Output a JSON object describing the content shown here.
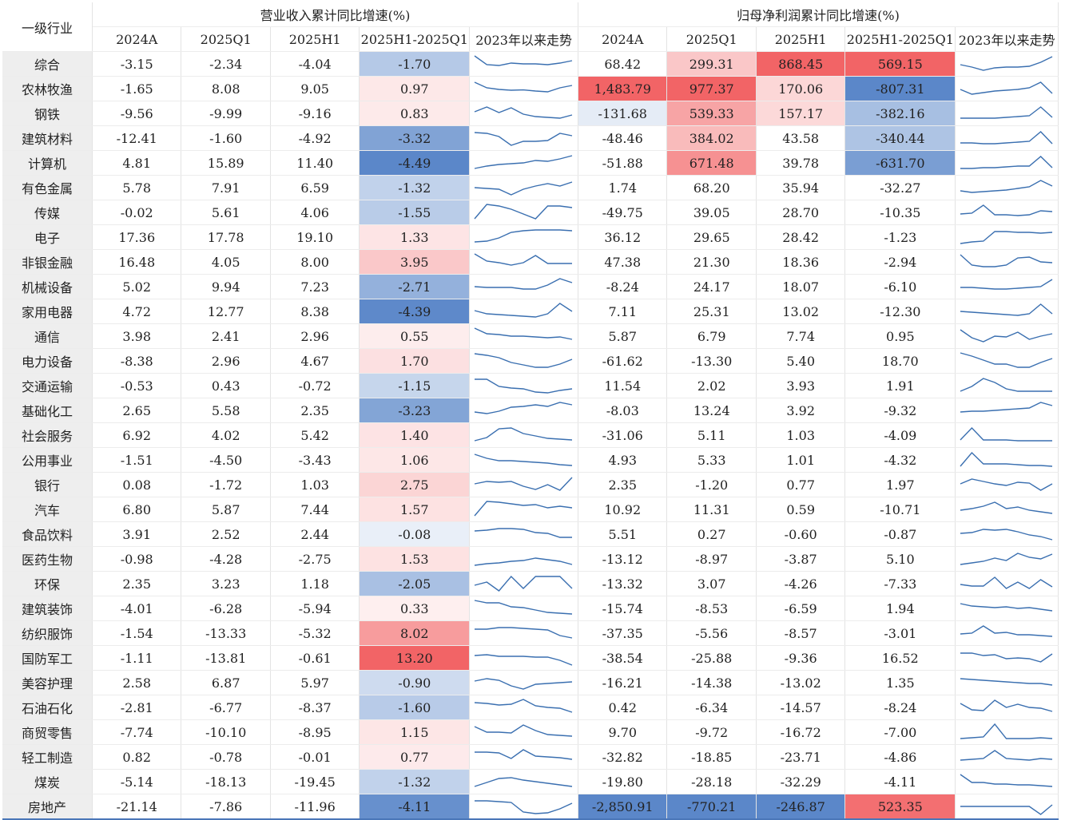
{
  "headers": {
    "industry": "一级行业",
    "revenue_group": "营业收入累计同比增速(%)",
    "profit_group": "归母净利润累计同比增速(%)",
    "cols": [
      "2024A",
      "2025Q1",
      "2025H1",
      "2025H1-2025Q1",
      "2023年以来走势"
    ]
  },
  "colors": {
    "header_text": "#5b7fb3",
    "border": "#4a76b8",
    "spark": "#3a6fb0",
    "negative_max": "#5b87c9",
    "positive_max": "#f26466"
  },
  "chart_data": {
    "type": "table",
    "rows": [
      {
        "name": "综合",
        "rev": [
          "-3.15",
          "-2.34",
          "-4.04",
          "-1.70"
        ],
        "pro": [
          "68.42",
          "299.31",
          "868.45",
          "569.15"
        ]
      },
      {
        "name": "农林牧渔",
        "rev": [
          "-1.65",
          "8.08",
          "9.05",
          "0.97"
        ],
        "pro": [
          "1,483.79",
          "977.37",
          "170.06",
          "-807.31"
        ]
      },
      {
        "name": "钢铁",
        "rev": [
          "-9.56",
          "-9.99",
          "-9.16",
          "0.83"
        ],
        "pro": [
          "-131.68",
          "539.33",
          "157.17",
          "-382.16"
        ]
      },
      {
        "name": "建筑材料",
        "rev": [
          "-12.41",
          "-1.60",
          "-4.92",
          "-3.32"
        ],
        "pro": [
          "-48.46",
          "384.02",
          "43.58",
          "-340.44"
        ]
      },
      {
        "name": "计算机",
        "rev": [
          "4.81",
          "15.89",
          "11.40",
          "-4.49"
        ],
        "pro": [
          "-51.88",
          "671.48",
          "39.78",
          "-631.70"
        ]
      },
      {
        "name": "有色金属",
        "rev": [
          "5.78",
          "7.91",
          "6.59",
          "-1.32"
        ],
        "pro": [
          "1.74",
          "68.20",
          "35.94",
          "-32.27"
        ]
      },
      {
        "name": "传媒",
        "rev": [
          "-0.02",
          "5.61",
          "4.06",
          "-1.55"
        ],
        "pro": [
          "-49.75",
          "39.05",
          "28.70",
          "-10.35"
        ]
      },
      {
        "name": "电子",
        "rev": [
          "17.36",
          "17.78",
          "19.10",
          "1.33"
        ],
        "pro": [
          "36.12",
          "29.65",
          "28.42",
          "-1.23"
        ]
      },
      {
        "name": "非银金融",
        "rev": [
          "16.48",
          "4.05",
          "8.00",
          "3.95"
        ],
        "pro": [
          "47.38",
          "21.30",
          "18.36",
          "-2.94"
        ]
      },
      {
        "name": "机械设备",
        "rev": [
          "5.02",
          "9.94",
          "7.23",
          "-2.71"
        ],
        "pro": [
          "-8.24",
          "24.17",
          "18.07",
          "-6.10"
        ]
      },
      {
        "name": "家用电器",
        "rev": [
          "4.72",
          "12.77",
          "8.38",
          "-4.39"
        ],
        "pro": [
          "7.11",
          "25.31",
          "13.02",
          "-12.30"
        ]
      },
      {
        "name": "通信",
        "rev": [
          "3.98",
          "2.41",
          "2.96",
          "0.55"
        ],
        "pro": [
          "5.87",
          "6.79",
          "7.74",
          "0.95"
        ]
      },
      {
        "name": "电力设备",
        "rev": [
          "-8.38",
          "2.96",
          "4.67",
          "1.70"
        ],
        "pro": [
          "-61.62",
          "-13.30",
          "5.40",
          "18.70"
        ]
      },
      {
        "name": "交通运输",
        "rev": [
          "-0.53",
          "0.43",
          "-0.72",
          "-1.15"
        ],
        "pro": [
          "11.54",
          "2.02",
          "3.93",
          "1.91"
        ]
      },
      {
        "name": "基础化工",
        "rev": [
          "2.65",
          "5.58",
          "2.35",
          "-3.23"
        ],
        "pro": [
          "-8.03",
          "13.24",
          "3.92",
          "-9.32"
        ]
      },
      {
        "name": "社会服务",
        "rev": [
          "6.92",
          "4.02",
          "5.42",
          "1.40"
        ],
        "pro": [
          "-31.06",
          "5.11",
          "1.03",
          "-4.09"
        ]
      },
      {
        "name": "公用事业",
        "rev": [
          "-1.51",
          "-4.50",
          "-3.43",
          "1.06"
        ],
        "pro": [
          "4.93",
          "5.33",
          "1.01",
          "-4.32"
        ]
      },
      {
        "name": "银行",
        "rev": [
          "0.08",
          "-1.72",
          "1.03",
          "2.75"
        ],
        "pro": [
          "2.35",
          "-1.20",
          "0.77",
          "1.97"
        ]
      },
      {
        "name": "汽车",
        "rev": [
          "6.80",
          "5.87",
          "7.44",
          "1.57"
        ],
        "pro": [
          "10.92",
          "11.31",
          "0.59",
          "-10.71"
        ]
      },
      {
        "name": "食品饮料",
        "rev": [
          "3.91",
          "2.52",
          "2.44",
          "-0.08"
        ],
        "pro": [
          "5.51",
          "0.27",
          "-0.60",
          "-0.87"
        ]
      },
      {
        "name": "医药生物",
        "rev": [
          "-0.98",
          "-4.28",
          "-2.75",
          "1.53"
        ],
        "pro": [
          "-13.12",
          "-8.97",
          "-3.87",
          "5.10"
        ]
      },
      {
        "name": "环保",
        "rev": [
          "2.35",
          "3.23",
          "1.18",
          "-2.05"
        ],
        "pro": [
          "-13.32",
          "3.07",
          "-4.26",
          "-7.33"
        ]
      },
      {
        "name": "建筑装饰",
        "rev": [
          "-4.01",
          "-6.28",
          "-5.94",
          "0.33"
        ],
        "pro": [
          "-15.74",
          "-8.53",
          "-6.59",
          "1.94"
        ]
      },
      {
        "name": "纺织服饰",
        "rev": [
          "-1.54",
          "-13.33",
          "-5.32",
          "8.02"
        ],
        "pro": [
          "-37.35",
          "-5.56",
          "-8.57",
          "-3.01"
        ]
      },
      {
        "name": "国防军工",
        "rev": [
          "-1.11",
          "-13.81",
          "-0.61",
          "13.20"
        ],
        "pro": [
          "-38.54",
          "-25.88",
          "-9.36",
          "16.52"
        ]
      },
      {
        "name": "美容护理",
        "rev": [
          "2.58",
          "6.87",
          "5.97",
          "-0.90"
        ],
        "pro": [
          "-16.21",
          "-14.38",
          "-13.02",
          "1.35"
        ]
      },
      {
        "name": "石油石化",
        "rev": [
          "-2.81",
          "-6.77",
          "-8.37",
          "-1.60"
        ],
        "pro": [
          "0.42",
          "-6.34",
          "-14.57",
          "-8.24"
        ]
      },
      {
        "name": "商贸零售",
        "rev": [
          "-7.74",
          "-10.10",
          "-8.95",
          "1.15"
        ],
        "pro": [
          "9.70",
          "-9.72",
          "-16.72",
          "-7.00"
        ]
      },
      {
        "name": "轻工制造",
        "rev": [
          "0.82",
          "-0.78",
          "-0.01",
          "0.77"
        ],
        "pro": [
          "-32.82",
          "-18.85",
          "-23.71",
          "-4.86"
        ]
      },
      {
        "name": "煤炭",
        "rev": [
          "-5.14",
          "-18.13",
          "-19.45",
          "-1.32"
        ],
        "pro": [
          "-19.80",
          "-28.18",
          "-32.29",
          "-4.11"
        ]
      },
      {
        "name": "房地产",
        "rev": [
          "-21.14",
          "-7.86",
          "-11.96",
          "-4.11"
        ],
        "pro": [
          "-2,850.91",
          "-770.21",
          "-246.87",
          "523.35"
        ]
      }
    ],
    "sparklines_revenue": [
      [
        1.0,
        0.45,
        0.4,
        0.55,
        0.5,
        0.5,
        0.45,
        0.55,
        0.7
      ],
      [
        0.9,
        0.55,
        0.45,
        0.4,
        0.42,
        0.35,
        0.3,
        0.55,
        0.7
      ],
      [
        0.6,
        0.9,
        0.55,
        0.85,
        0.45,
        0.3,
        0.25,
        0.2,
        0.4
      ],
      [
        0.85,
        0.8,
        0.6,
        0.05,
        0.3,
        0.3,
        0.35,
        0.8,
        0.65
      ],
      [
        0.15,
        0.3,
        0.4,
        0.45,
        0.5,
        0.65,
        0.6,
        0.75,
        0.95
      ],
      [
        0.5,
        0.45,
        0.4,
        0.05,
        0.4,
        0.6,
        0.75,
        0.6,
        0.85
      ],
      [
        0.1,
        1.0,
        0.9,
        0.7,
        0.4,
        0.1,
        0.9,
        0.9,
        0.8
      ],
      [
        0.2,
        0.25,
        0.45,
        0.8,
        0.9,
        0.95,
        0.95,
        0.95,
        0.9
      ],
      [
        1.0,
        0.55,
        0.45,
        0.3,
        0.45,
        0.9,
        0.4,
        0.4,
        0.4
      ],
      [
        0.5,
        0.45,
        0.45,
        0.45,
        0.35,
        0.35,
        0.6,
        1.0,
        0.75
      ],
      [
        0.55,
        0.35,
        0.3,
        0.25,
        0.2,
        0.15,
        0.35,
        1.0,
        0.5
      ],
      [
        1.0,
        0.65,
        0.6,
        0.5,
        0.5,
        0.45,
        0.4,
        0.45,
        0.3
      ],
      [
        0.95,
        0.85,
        0.7,
        0.4,
        0.25,
        0.1,
        0.1,
        0.3,
        0.6
      ],
      [
        0.9,
        0.9,
        0.45,
        0.35,
        0.3,
        0.1,
        0.05,
        0.2,
        0.3
      ],
      [
        0.4,
        0.3,
        0.45,
        0.7,
        0.75,
        0.85,
        0.75,
        1.0,
        0.85
      ],
      [
        0.15,
        0.35,
        0.9,
        0.95,
        0.6,
        0.45,
        0.3,
        0.25,
        0.2
      ],
      [
        0.85,
        0.6,
        0.45,
        0.45,
        0.4,
        0.35,
        0.3,
        0.2,
        0.15
      ],
      [
        0.55,
        0.7,
        0.65,
        0.7,
        0.4,
        0.2,
        0.5,
        0.15,
        0.95
      ],
      [
        0.1,
        1.0,
        0.95,
        0.85,
        0.75,
        0.8,
        0.6,
        0.7,
        0.6
      ],
      [
        0.7,
        0.75,
        0.85,
        0.85,
        0.8,
        0.6,
        0.55,
        0.3,
        0.3
      ],
      [
        0.1,
        0.2,
        0.25,
        0.35,
        0.4,
        0.55,
        0.45,
        0.35,
        0.15
      ],
      [
        0.4,
        0.6,
        0.05,
        0.95,
        0.2,
        0.95,
        0.95,
        0.95,
        0.2
      ],
      [
        1.0,
        0.85,
        0.85,
        0.6,
        0.55,
        0.4,
        0.25,
        0.2,
        0.15
      ],
      [
        0.75,
        0.75,
        0.85,
        0.85,
        0.8,
        0.75,
        0.7,
        0.35,
        0.2
      ],
      [
        0.65,
        0.7,
        0.6,
        0.6,
        0.6,
        0.55,
        0.55,
        0.35,
        0.05
      ],
      [
        0.6,
        0.75,
        0.65,
        0.3,
        0.1,
        0.4,
        0.45,
        0.5,
        0.55
      ],
      [
        0.8,
        0.75,
        0.65,
        0.7,
        1.0,
        0.6,
        0.5,
        0.45,
        0.2
      ],
      [
        0.85,
        0.5,
        0.5,
        0.45,
        0.95,
        0.6,
        0.35,
        0.3,
        0.25
      ],
      [
        0.8,
        0.8,
        0.75,
        0.4,
        0.95,
        0.55,
        0.5,
        0.45,
        0.35
      ],
      [
        0.2,
        0.45,
        0.7,
        0.75,
        0.6,
        0.5,
        0.4,
        0.3,
        0.2
      ],
      [
        0.85,
        0.85,
        0.8,
        0.75,
        0.15,
        0.05,
        0.1,
        0.35,
        0.7
      ]
    ],
    "sparklines_profit": [
      [
        0.45,
        0.3,
        0.1,
        0.25,
        0.3,
        0.3,
        0.35,
        0.6,
        0.95
      ],
      [
        0.45,
        0.15,
        0.25,
        0.35,
        0.4,
        0.45,
        0.55,
        0.9,
        0.2
      ],
      [
        0.2,
        0.2,
        0.2,
        0.2,
        0.25,
        0.3,
        0.35,
        0.9,
        0.25
      ],
      [
        0.2,
        0.2,
        0.15,
        0.15,
        0.2,
        0.25,
        0.3,
        0.9,
        0.15
      ],
      [
        0.15,
        0.15,
        0.2,
        0.2,
        0.25,
        0.3,
        0.3,
        0.9,
        0.2
      ],
      [
        0.3,
        0.2,
        0.25,
        0.3,
        0.35,
        0.45,
        0.55,
        0.95,
        0.6
      ],
      [
        0.4,
        0.45,
        0.95,
        0.35,
        0.35,
        0.3,
        0.35,
        0.6,
        0.55
      ],
      [
        0.1,
        0.2,
        0.25,
        0.85,
        0.85,
        0.8,
        0.8,
        0.75,
        0.8
      ],
      [
        0.95,
        0.3,
        0.2,
        0.2,
        0.3,
        0.75,
        0.8,
        0.5,
        0.45
      ],
      [
        0.45,
        0.45,
        0.4,
        0.35,
        0.35,
        0.4,
        0.45,
        0.5,
        0.95
      ],
      [
        0.5,
        0.45,
        0.4,
        0.35,
        0.3,
        0.25,
        0.35,
        0.95,
        0.35
      ],
      [
        0.9,
        0.4,
        0.15,
        0.5,
        0.45,
        0.75,
        0.3,
        0.5,
        0.65
      ],
      [
        1.0,
        0.8,
        0.55,
        0.3,
        0.3,
        0.1,
        0.1,
        0.4,
        0.65
      ],
      [
        0.15,
        0.45,
        0.95,
        0.7,
        0.3,
        0.15,
        0.15,
        0.15,
        0.15
      ],
      [
        0.4,
        0.45,
        0.45,
        0.5,
        0.55,
        0.6,
        0.65,
        1.0,
        0.8
      ],
      [
        0.2,
        0.95,
        0.2,
        0.2,
        0.2,
        0.15,
        0.15,
        0.15,
        0.15
      ],
      [
        0.1,
        0.95,
        0.25,
        0.25,
        0.25,
        0.2,
        0.15,
        0.15,
        0.1
      ],
      [
        0.55,
        0.85,
        0.7,
        0.55,
        0.45,
        0.65,
        0.6,
        0.15,
        0.55
      ],
      [
        0.45,
        0.55,
        0.7,
        0.95,
        0.55,
        0.65,
        0.45,
        0.35,
        0.25
      ],
      [
        0.55,
        0.6,
        0.8,
        0.75,
        0.8,
        0.65,
        0.45,
        0.35,
        0.15
      ],
      [
        0.15,
        0.25,
        0.35,
        0.55,
        0.4,
        0.85,
        0.6,
        0.5,
        0.8
      ],
      [
        0.45,
        0.35,
        0.35,
        0.9,
        0.2,
        0.6,
        0.2,
        0.75,
        0.3
      ],
      [
        0.8,
        0.65,
        0.6,
        0.55,
        0.6,
        0.5,
        0.55,
        0.45,
        0.35
      ],
      [
        0.45,
        0.5,
        0.95,
        0.5,
        0.55,
        0.4,
        0.4,
        0.35,
        0.3
      ],
      [
        0.8,
        0.8,
        0.65,
        0.7,
        0.45,
        0.5,
        0.45,
        0.25,
        0.75
      ],
      [
        0.75,
        0.7,
        0.65,
        0.6,
        0.55,
        0.5,
        0.45,
        0.45,
        0.35
      ],
      [
        0.75,
        0.35,
        0.3,
        0.95,
        0.5,
        0.7,
        0.5,
        0.45,
        0.25
      ],
      [
        0.1,
        0.15,
        0.2,
        1.0,
        0.1,
        0.1,
        0.1,
        0.15,
        0.1
      ],
      [
        0.3,
        0.35,
        0.4,
        0.9,
        0.4,
        0.35,
        0.3,
        0.4,
        0.35
      ],
      [
        0.95,
        0.45,
        0.45,
        0.35,
        0.35,
        0.3,
        0.3,
        0.25,
        0.2
      ],
      [
        0.5,
        0.5,
        0.5,
        0.5,
        0.5,
        0.5,
        0.5,
        0.0,
        0.6
      ]
    ]
  }
}
